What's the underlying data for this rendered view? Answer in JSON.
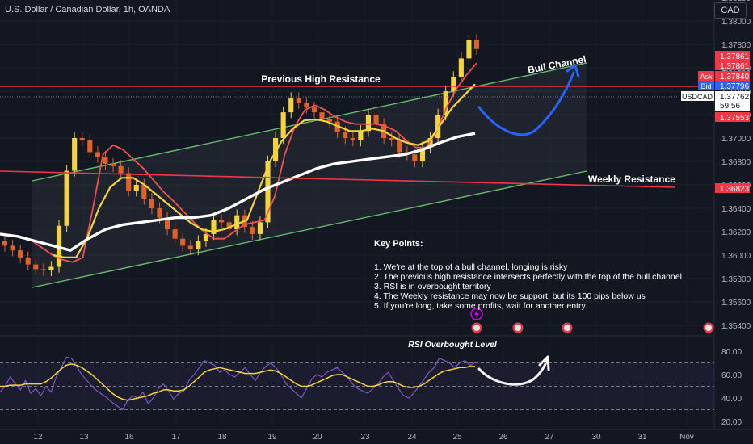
{
  "header": {
    "title": "U.S. Dollar / Canadian Dollar, 1h, OANDA",
    "currency": "CAD"
  },
  "chart_data": [
    {
      "type": "candlestick",
      "title": "U.S. Dollar / Canadian Dollar, 1h, OANDA",
      "symbol": "USDCAD",
      "timeframe": "1h",
      "source": "OANDA",
      "y_ticks": [
        "1.38400",
        "1.38200",
        "1.38000",
        "1.37800",
        "1.37600",
        "1.37400",
        "1.37200",
        "1.37000",
        "1.36800",
        "1.36600",
        "1.36400",
        "1.36200",
        "1.36000",
        "1.35800",
        "1.35600",
        "1.35400"
      ],
      "x_ticks": [
        "12",
        "13",
        "16",
        "17",
        "18",
        "19",
        "20",
        "23",
        "24",
        "25",
        "26",
        "27",
        "30",
        "31",
        "Nov"
      ],
      "ylim": [
        1.3535,
        1.3853
      ],
      "price_tags": [
        {
          "label": "",
          "value": "1.37861",
          "color": "#f23645"
        },
        {
          "label": "",
          "value": "1.37861",
          "color": "#f23645"
        },
        {
          "label": "Ask",
          "value": "1.37840",
          "color": "#f23645"
        },
        {
          "label": "Bid",
          "value": "1.37796",
          "color": "#2962ff"
        },
        {
          "label": "USDCAD",
          "value": "1.37762",
          "countdown": "59:56",
          "color": "#ffffff"
        },
        {
          "label": "",
          "value": "1.37553",
          "color": "#f23645"
        },
        {
          "label": "",
          "value": "1.36823",
          "color": "#f23645"
        }
      ],
      "close_approx": [
        1.3608,
        1.3604,
        1.3598,
        1.3592,
        1.3588,
        1.3587,
        1.359,
        1.3625,
        1.3672,
        1.37,
        1.3698,
        1.3688,
        1.3684,
        1.3678,
        1.3676,
        1.367,
        1.3655,
        1.366,
        1.3648,
        1.364,
        1.3632,
        1.3622,
        1.3614,
        1.3608,
        1.3605,
        1.3612,
        1.3618,
        1.363,
        1.3628,
        1.3622,
        1.3634,
        1.3624,
        1.3618,
        1.3628,
        1.368,
        1.37,
        1.3722,
        1.3734,
        1.373,
        1.3726,
        1.3722,
        1.3716,
        1.3714,
        1.3705,
        1.37,
        1.3698,
        1.3706,
        1.372,
        1.3712,
        1.37,
        1.3698,
        1.3688,
        1.3686,
        1.368,
        1.3692,
        1.37,
        1.372,
        1.374,
        1.3752,
        1.3768,
        1.3784,
        1.3776
      ],
      "moving_averages": [
        {
          "color": "#ef5350",
          "values": [
            1.3612,
            1.3606,
            1.36,
            1.3596,
            1.3594,
            1.3598,
            1.364,
            1.3686,
            1.3694,
            1.369,
            1.3682,
            1.3674,
            1.3664,
            1.3654,
            1.3646,
            1.3637,
            1.3628,
            1.362,
            1.3614,
            1.3614,
            1.362,
            1.3626,
            1.3628,
            1.363,
            1.365,
            1.3686,
            1.371,
            1.3724,
            1.3728,
            1.3724,
            1.3718,
            1.3714,
            1.3712,
            1.3712,
            1.3712,
            1.371,
            1.3706,
            1.3698,
            1.3692,
            1.3692,
            1.3705,
            1.3726,
            1.3742,
            1.3754,
            1.3764
          ]
        },
        {
          "color": "#f5d43a",
          "values": [
            1.36,
            1.3598,
            1.3598,
            1.3615,
            1.364,
            1.3658,
            1.3666,
            1.3666,
            1.366,
            1.3652,
            1.3644,
            1.3636,
            1.3628,
            1.3622,
            1.362,
            1.3622,
            1.3626,
            1.363,
            1.3655,
            1.368,
            1.3697,
            1.3708,
            1.3715,
            1.3716,
            1.3714,
            1.371,
            1.3706,
            1.3706,
            1.3708,
            1.3706,
            1.37,
            1.3696,
            1.3694,
            1.3698,
            1.3712,
            1.3726,
            1.3736,
            1.3746
          ]
        },
        {
          "color": "#ffffff",
          "values": [
            1.3618,
            1.3616,
            1.3612,
            1.3608,
            1.3604,
            1.3614,
            1.3622,
            1.3626,
            1.3628,
            1.363,
            1.3632,
            1.3632,
            1.3634,
            1.364,
            1.3648,
            1.3656,
            1.3662,
            1.3668,
            1.3674,
            1.3678,
            1.368,
            1.3682,
            1.3684,
            1.3686,
            1.369,
            1.3696,
            1.3701,
            1.3704
          ]
        }
      ],
      "annotations": [
        {
          "text": "Previous High Resistance",
          "level": 1.3781
        },
        {
          "text": "Bull Channel"
        },
        {
          "text": "Weekly Resistance",
          "level": 1.3682
        }
      ],
      "notes": {
        "heading": "Key Points:",
        "items": [
          "1. We're at the top of a bull channel, longing is risky",
          "2. The previous high resistance intersects perfectly with the top of the bull channel",
          "3. RSI is in overbought territory",
          "4. The Weekly resistance may now be support, but its 100 pips below us",
          "5. If you're long, take some profits, wait for another entry."
        ]
      }
    },
    {
      "type": "line",
      "title": "RSI Overbought Level",
      "y_ticks": [
        "80.00",
        "60.00",
        "40.00",
        "20.00"
      ],
      "ylim": [
        15,
        90
      ],
      "levels": [
        70,
        50,
        30
      ],
      "series": [
        {
          "color": "#7e57c2",
          "values": [
            45,
            50,
            58,
            52,
            47,
            55,
            44,
            48,
            42,
            50,
            45,
            58,
            66,
            75,
            74,
            67,
            60,
            55,
            50,
            46,
            43,
            40,
            36,
            33,
            30,
            38,
            42,
            40,
            45,
            35,
            40,
            48,
            52,
            46,
            39,
            44,
            46,
            55,
            60,
            66,
            72,
            70,
            68,
            62,
            64,
            60,
            58,
            62,
            66,
            60,
            55,
            62,
            67,
            70,
            66,
            60,
            52,
            48,
            44,
            40,
            48,
            56,
            60,
            58,
            62,
            64,
            66,
            62,
            58,
            52,
            48,
            46,
            44,
            48,
            52,
            58,
            62,
            55,
            48,
            42,
            40,
            44,
            50,
            56,
            62,
            66,
            74,
            72,
            70,
            66,
            70,
            72,
            68,
            70
          ]
        },
        {
          "color": "#f5d43a",
          "values": [
            50,
            50,
            51,
            51,
            51,
            52,
            52,
            52,
            52,
            54,
            57,
            61,
            65,
            68,
            69,
            68,
            66,
            63,
            60,
            56,
            52,
            48,
            44,
            41,
            39,
            38,
            39,
            40,
            41,
            42,
            44,
            45,
            47,
            47,
            46,
            46,
            47,
            50,
            54,
            58,
            62,
            64,
            65,
            66,
            65,
            64,
            63,
            62,
            61,
            61,
            61,
            62,
            63,
            64,
            63,
            61,
            58,
            55,
            52,
            50,
            50,
            51,
            53,
            55,
            57,
            59,
            60,
            60,
            58,
            56,
            54,
            52,
            50,
            50,
            51,
            53,
            54,
            54,
            52,
            50,
            49,
            49,
            50,
            52,
            55,
            58,
            61,
            63,
            64,
            65,
            66,
            66,
            67,
            67
          ]
        }
      ]
    }
  ]
}
